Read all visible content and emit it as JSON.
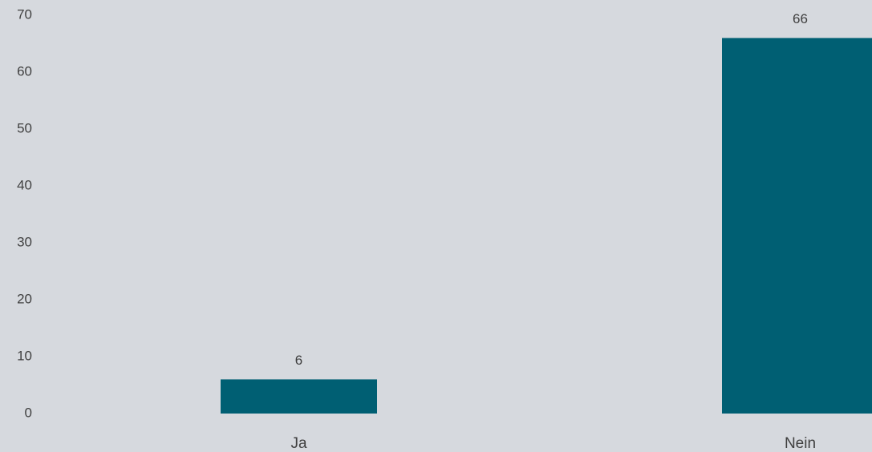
{
  "chart_data": {
    "type": "bar",
    "categories": [
      "Ja",
      "Nein"
    ],
    "values": [
      6,
      66
    ],
    "color": "#005f73",
    "ylim": [
      0,
      70
    ],
    "yticks": [
      0,
      10,
      20,
      30,
      40,
      50,
      60,
      70
    ],
    "grid": false,
    "data_labels": true
  }
}
